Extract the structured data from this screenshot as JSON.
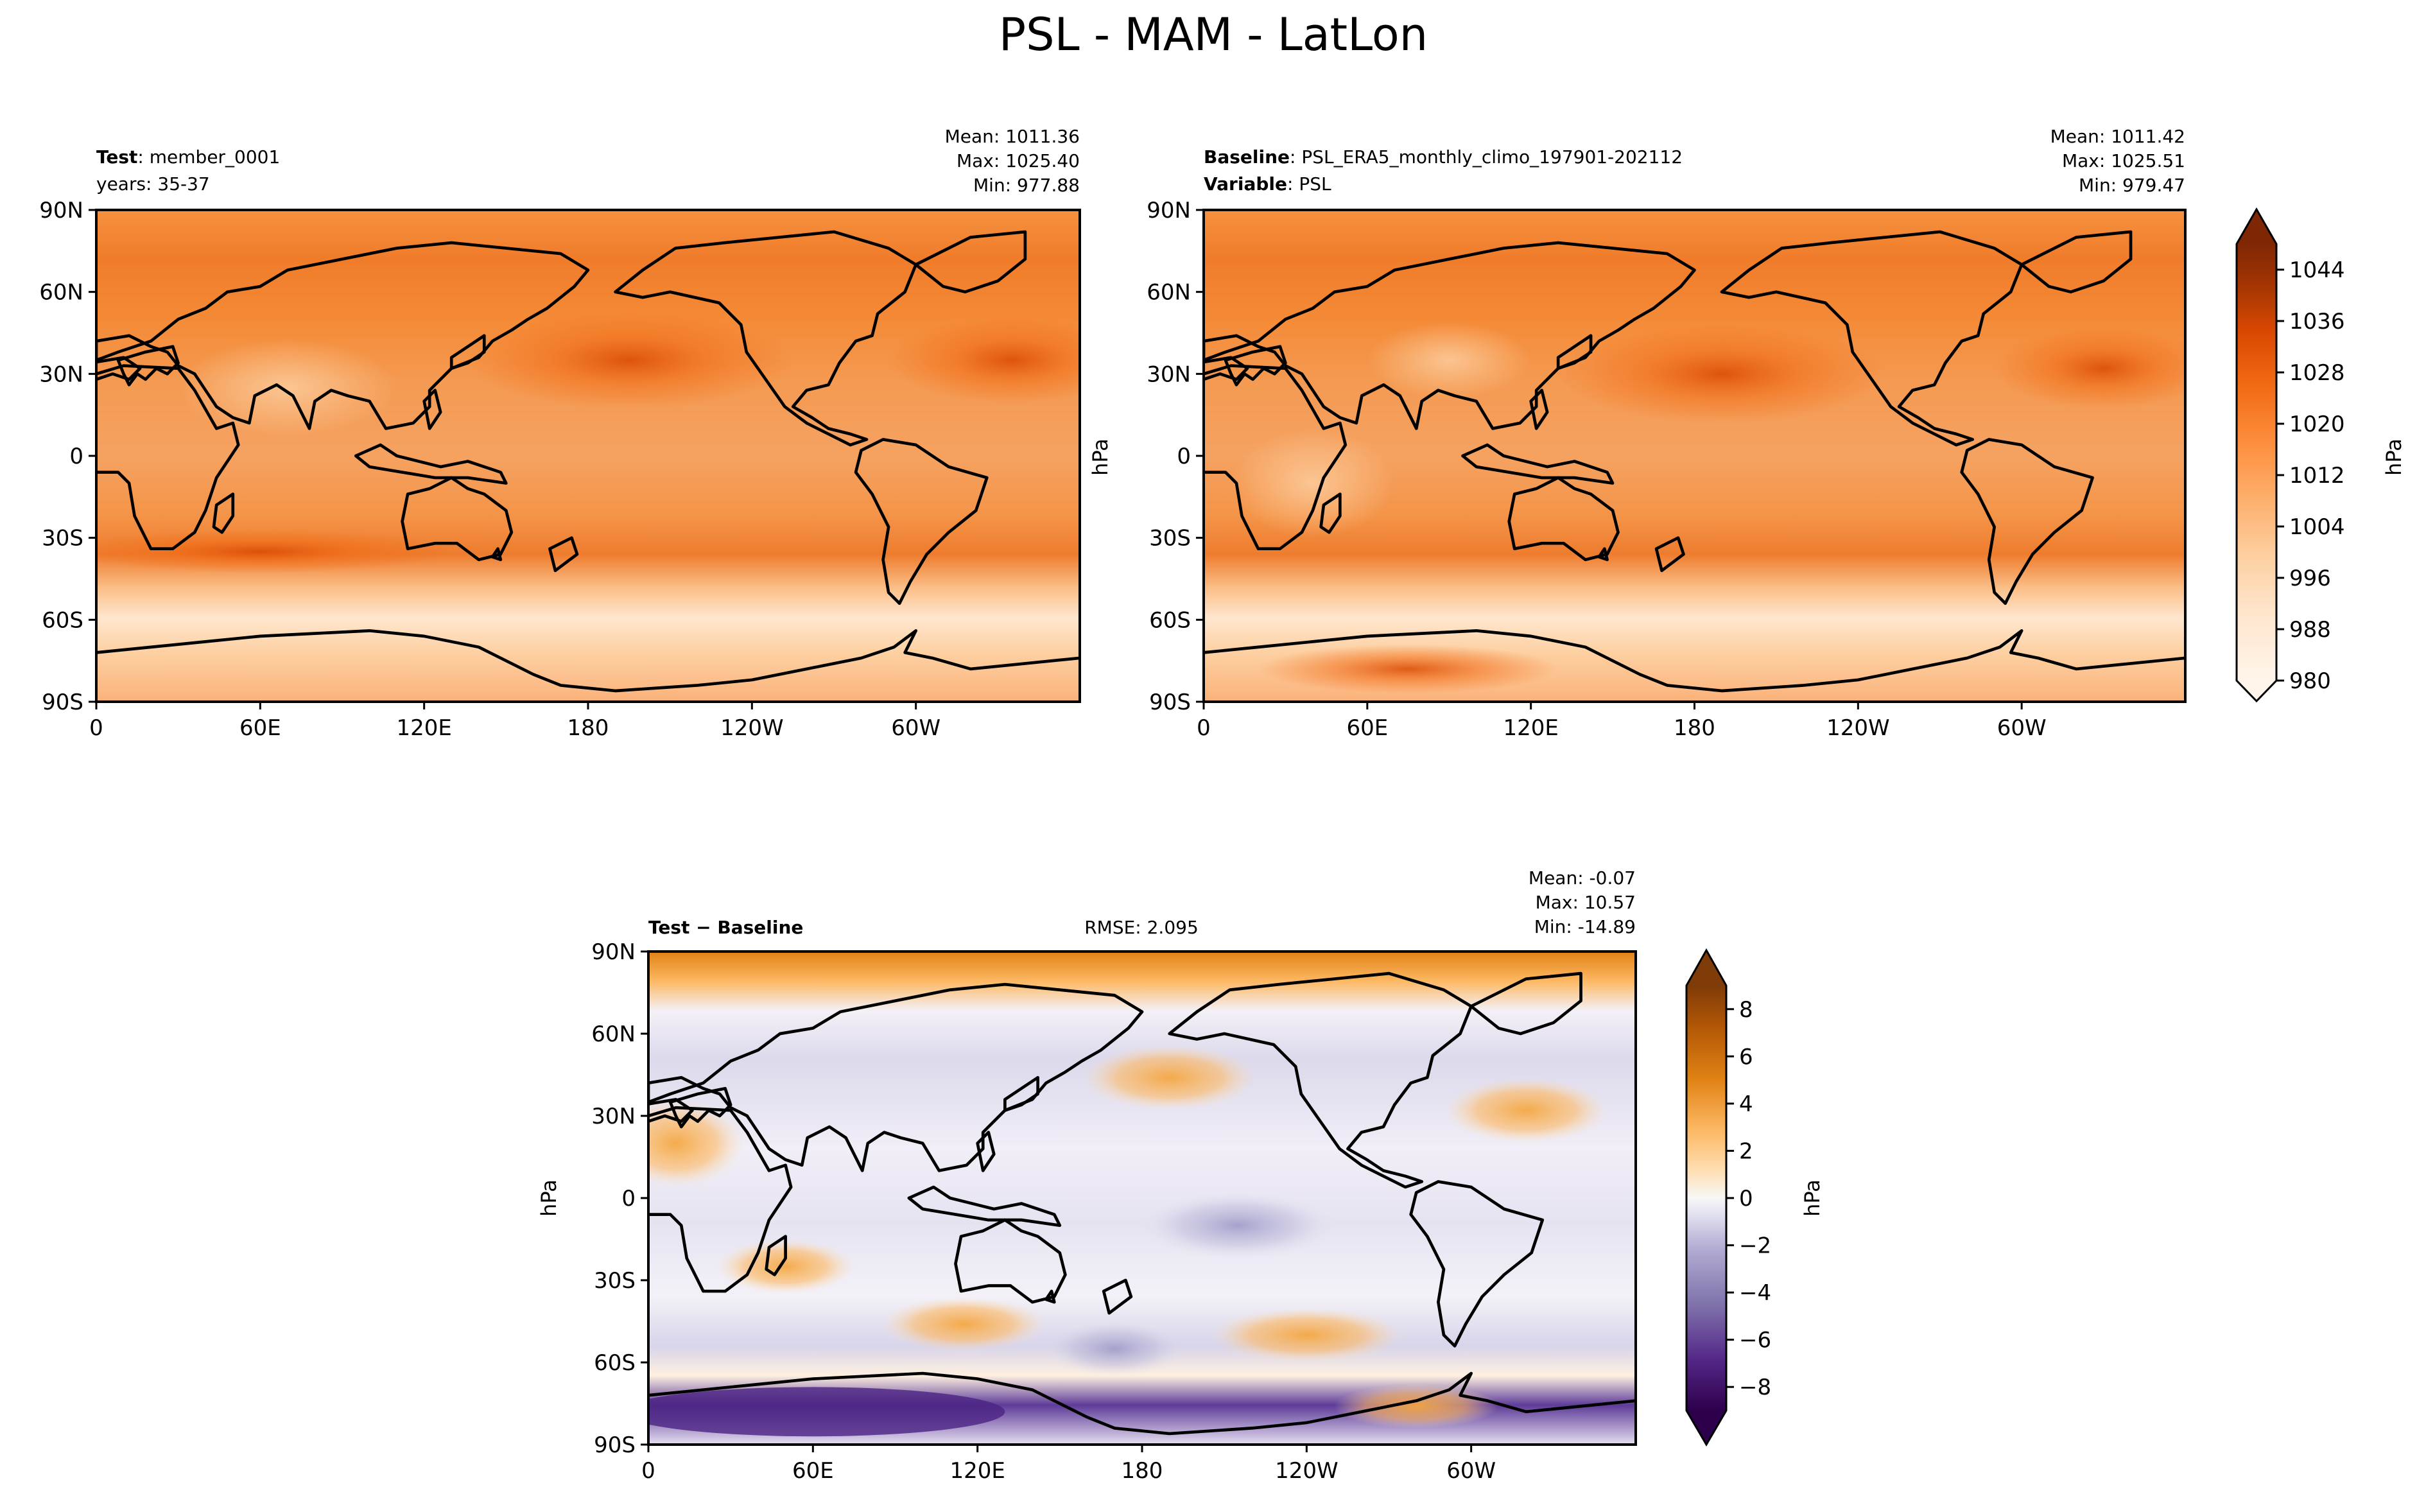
{
  "figure": {
    "title": "PSL - MAM - LatLon"
  },
  "colors": {
    "psl_scale": [
      "#fff5eb",
      "#fee6ce",
      "#fdd0a2",
      "#fdae6b",
      "#fd8d3c",
      "#f16913",
      "#d94801",
      "#a63603",
      "#7f2704"
    ],
    "diff_scale": [
      "#3f007d",
      "#54278f",
      "#6a51a3",
      "#9e9ac8",
      "#dadaeb",
      "#f7f7f7",
      "#fee0b6",
      "#fdb863",
      "#e08214",
      "#b35806",
      "#7f3b08"
    ],
    "land_outline": "#000000"
  },
  "chart_data": [
    {
      "id": "test",
      "type": "heatmap",
      "label_bold": "Test",
      "label_value": "member_0001",
      "sub_label": "years: 35-37",
      "stats": [
        "Mean: 1011.36",
        "Max: 1025.40",
        "Min: 977.88"
      ],
      "x_ticks": [
        "0",
        "60E",
        "120E",
        "180",
        "120W",
        "60W"
      ],
      "y_ticks": [
        "90N",
        "60N",
        "30N",
        "0",
        "30S",
        "60S",
        "90S"
      ],
      "ylabel": "hPa",
      "xlim": [
        0,
        360
      ],
      "ylim": [
        -90,
        90
      ],
      "mean": 1011.36,
      "max": 1025.4,
      "min": 977.88
    },
    {
      "id": "baseline",
      "type": "heatmap",
      "label_bold": "Baseline",
      "label_value": "PSL_ERA5_monthly_climo_197901-202112",
      "label2_bold": "Variable",
      "label2_value": "PSL",
      "stats": [
        "Mean: 1011.42",
        "Max: 1025.51",
        "Min: 979.47"
      ],
      "x_ticks": [
        "0",
        "60E",
        "120E",
        "180",
        "120W",
        "60W"
      ],
      "y_ticks": [
        "90N",
        "60N",
        "30N",
        "0",
        "30S",
        "60S",
        "90S"
      ],
      "xlim": [
        0,
        360
      ],
      "ylim": [
        -90,
        90
      ],
      "mean": 1011.42,
      "max": 1025.51,
      "min": 979.47
    },
    {
      "id": "diff",
      "type": "heatmap",
      "label_bold": "Test − Baseline",
      "rmse": "RMSE: 2.095",
      "stats": [
        "Mean: -0.07",
        "Max: 10.57",
        "Min: -14.89"
      ],
      "x_ticks": [
        "0",
        "60E",
        "120E",
        "180",
        "120W",
        "60W"
      ],
      "y_ticks": [
        "90N",
        "60N",
        "30N",
        "0",
        "30S",
        "60S",
        "90S"
      ],
      "ylabel": "hPa",
      "xlim": [
        0,
        360
      ],
      "ylim": [
        -90,
        90
      ],
      "mean": -0.07,
      "max": 10.57,
      "min": -14.89
    }
  ],
  "colorbar_top": {
    "label": "hPa",
    "ticks": [
      "1044",
      "1036",
      "1028",
      "1020",
      "1012",
      "1004",
      "996",
      "988",
      "980"
    ],
    "range": [
      980,
      1048
    ]
  },
  "colorbar_bottom": {
    "label": "hPa",
    "ticks": [
      "8",
      "6",
      "4",
      "2",
      "0",
      "−2",
      "−4",
      "−6",
      "−8"
    ],
    "range": [
      -9,
      9
    ]
  }
}
